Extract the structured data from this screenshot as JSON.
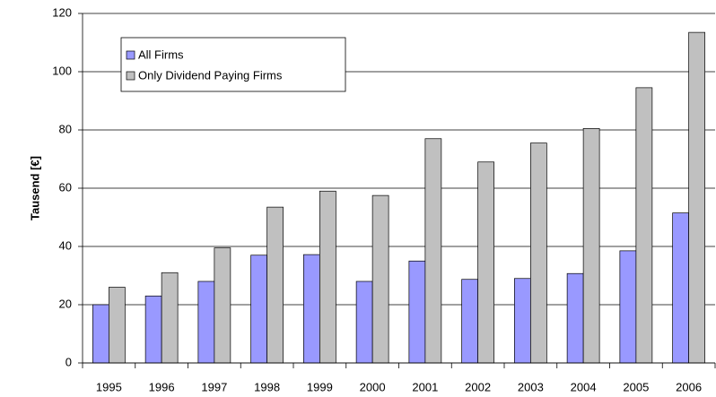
{
  "chart_data": {
    "type": "bar",
    "y_label": "Tausend [€]",
    "categories": [
      "1995",
      "1996",
      "1997",
      "1998",
      "1999",
      "2000",
      "2001",
      "2002",
      "2003",
      "2004",
      "2005",
      "2006"
    ],
    "series": [
      {
        "name": "All Firms",
        "color": "#9999ff",
        "values": [
          20,
          23,
          28,
          37,
          37.2,
          28,
          35,
          28.7,
          29,
          30.7,
          38.5,
          51.5
        ]
      },
      {
        "name": "Only Dividend Paying Firms",
        "color": "#c0c0c0",
        "values": [
          26,
          31,
          39.5,
          53.5,
          59,
          57.5,
          77,
          69,
          75.5,
          80.5,
          94.5,
          113.5
        ]
      }
    ],
    "ylim": [
      0,
      120
    ],
    "yticks": [
      0,
      20,
      40,
      60,
      80,
      100,
      120
    ],
    "grid": true,
    "legend": "upper-left"
  }
}
